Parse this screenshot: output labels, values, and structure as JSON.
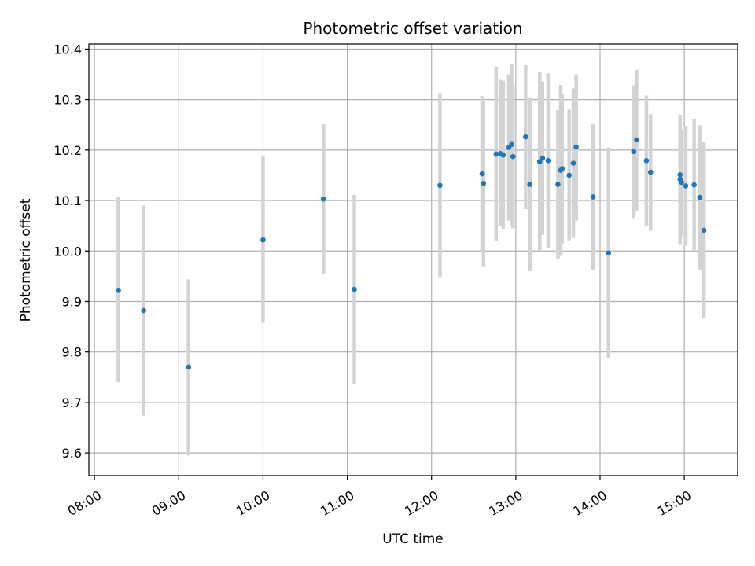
{
  "chart_data": {
    "type": "scatter",
    "title": "Photometric offset variation",
    "xlabel": "UTC time",
    "ylabel": "Photometric offset",
    "xlim": [
      "07:56",
      "15:38"
    ],
    "ylim": [
      9.555,
      10.41
    ],
    "x_ticks": [
      "08:00",
      "09:00",
      "10:00",
      "11:00",
      "12:00",
      "13:00",
      "14:00",
      "15:00"
    ],
    "y_ticks": [
      9.6,
      9.7,
      9.8,
      9.9,
      10.0,
      10.1,
      10.2,
      10.3,
      10.4
    ],
    "grid": true,
    "colors": {
      "marker": "#1f77b4",
      "errorbar": "#d3d3d3",
      "grid": "#b0b0b0"
    },
    "points": [
      {
        "t": "08:17",
        "y": 9.922,
        "lo": 9.74,
        "hi": 10.107
      },
      {
        "t": "08:35",
        "y": 9.882,
        "lo": 9.674,
        "hi": 10.09
      },
      {
        "t": "09:07",
        "y": 9.77,
        "lo": 9.595,
        "hi": 9.944
      },
      {
        "t": "10:00",
        "y": 10.022,
        "lo": 9.858,
        "hi": 10.187
      },
      {
        "t": "10:43",
        "y": 10.103,
        "lo": 9.955,
        "hi": 10.251
      },
      {
        "t": "11:05",
        "y": 9.924,
        "lo": 9.736,
        "hi": 10.111
      },
      {
        "t": "12:06",
        "y": 10.13,
        "lo": 9.947,
        "hi": 10.313
      },
      {
        "t": "12:36",
        "y": 10.153,
        "lo": 9.998,
        "hi": 10.307
      },
      {
        "t": "12:37",
        "y": 10.134,
        "lo": 9.968,
        "hi": 10.298
      },
      {
        "t": "12:46",
        "y": 10.192,
        "lo": 10.02,
        "hi": 10.365
      },
      {
        "t": "12:49",
        "y": 10.193,
        "lo": 10.05,
        "hi": 10.339
      },
      {
        "t": "12:51",
        "y": 10.19,
        "lo": 10.044,
        "hi": 10.337
      },
      {
        "t": "12:55",
        "y": 10.205,
        "lo": 10.06,
        "hi": 10.35
      },
      {
        "t": "12:57",
        "y": 10.211,
        "lo": 10.05,
        "hi": 10.37
      },
      {
        "t": "12:58",
        "y": 10.187,
        "lo": 10.045,
        "hi": 10.33
      },
      {
        "t": "13:07",
        "y": 10.226,
        "lo": 10.083,
        "hi": 10.368
      },
      {
        "t": "13:10",
        "y": 10.132,
        "lo": 9.96,
        "hi": 10.303
      },
      {
        "t": "13:17",
        "y": 10.177,
        "lo": 10.0,
        "hi": 10.354
      },
      {
        "t": "13:19",
        "y": 10.184,
        "lo": 10.032,
        "hi": 10.336
      },
      {
        "t": "13:23",
        "y": 10.179,
        "lo": 10.006,
        "hi": 10.352
      },
      {
        "t": "13:30",
        "y": 10.132,
        "lo": 9.985,
        "hi": 10.279
      },
      {
        "t": "13:32",
        "y": 10.16,
        "lo": 9.99,
        "hi": 10.329
      },
      {
        "t": "13:33",
        "y": 10.163,
        "lo": 10.015,
        "hi": 10.31
      },
      {
        "t": "13:38",
        "y": 10.15,
        "lo": 10.021,
        "hi": 10.28
      },
      {
        "t": "13:41",
        "y": 10.174,
        "lo": 10.026,
        "hi": 10.322
      },
      {
        "t": "13:43",
        "y": 10.206,
        "lo": 10.06,
        "hi": 10.35
      },
      {
        "t": "13:55",
        "y": 10.107,
        "lo": 9.963,
        "hi": 10.251
      },
      {
        "t": "14:06",
        "y": 9.996,
        "lo": 9.788,
        "hi": 10.205
      },
      {
        "t": "14:24",
        "y": 10.197,
        "lo": 10.065,
        "hi": 10.328
      },
      {
        "t": "14:26",
        "y": 10.22,
        "lo": 10.08,
        "hi": 10.359
      },
      {
        "t": "14:33",
        "y": 10.179,
        "lo": 10.05,
        "hi": 10.308
      },
      {
        "t": "14:36",
        "y": 10.156,
        "lo": 10.04,
        "hi": 10.271
      },
      {
        "t": "14:57",
        "y": 10.151,
        "lo": 10.034,
        "hi": 10.268
      },
      {
        "t": "14:57",
        "y": 10.142,
        "lo": 10.012,
        "hi": 10.27
      },
      {
        "t": "14:58",
        "y": 10.136,
        "lo": 10.03,
        "hi": 10.24
      },
      {
        "t": "15:01",
        "y": 10.129,
        "lo": 10.01,
        "hi": 10.248
      },
      {
        "t": "15:07",
        "y": 10.131,
        "lo": 10.0,
        "hi": 10.262
      },
      {
        "t": "15:11",
        "y": 10.106,
        "lo": 9.963,
        "hi": 10.249
      },
      {
        "t": "15:14",
        "y": 10.041,
        "lo": 9.867,
        "hi": 10.215
      }
    ]
  }
}
